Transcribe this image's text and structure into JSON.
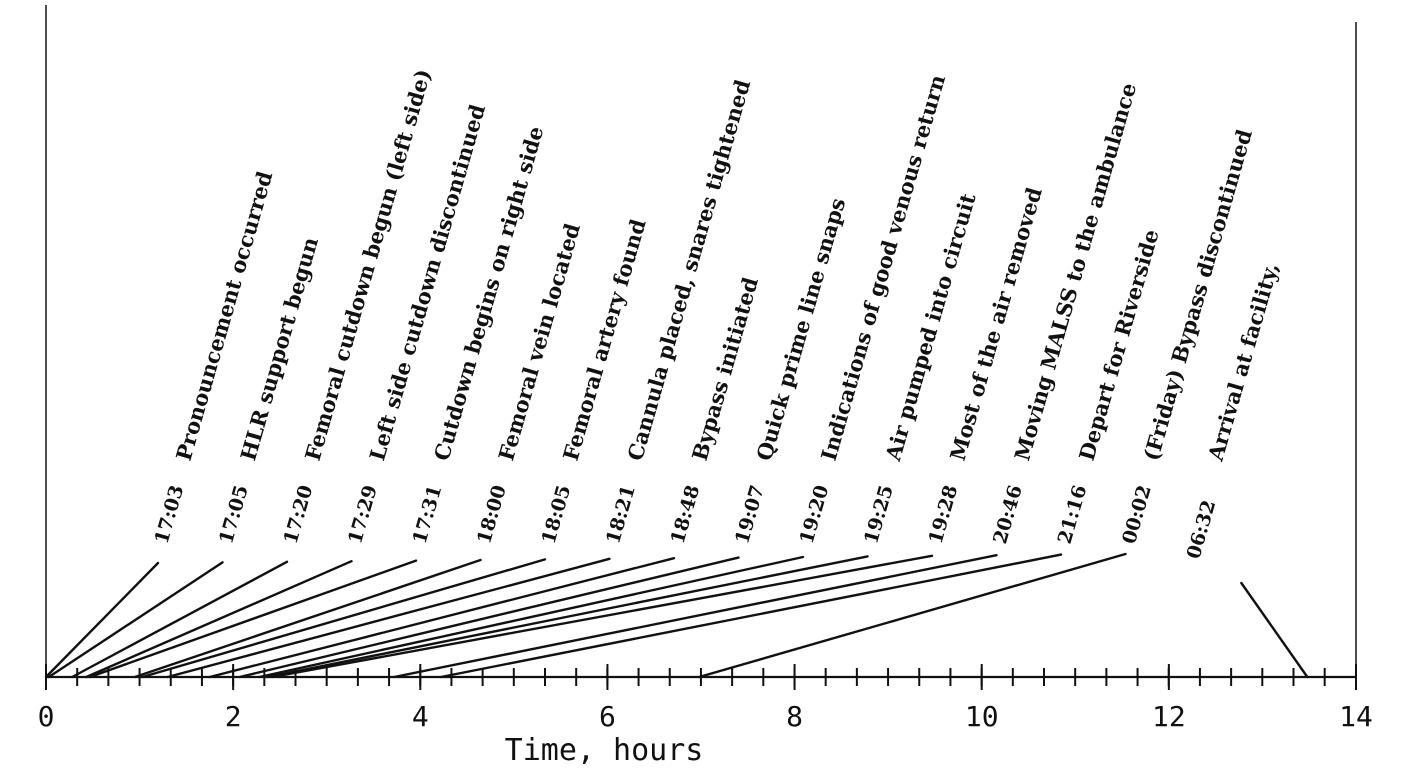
{
  "chart_data": {
    "type": "timeline",
    "xlabel": "Time, hours",
    "xlim": [
      0,
      14
    ],
    "xticks": [
      "0",
      "2",
      "4",
      "6",
      "8",
      "10",
      "12",
      "14"
    ],
    "minor_tick_step": 0.3333,
    "events": [
      {
        "time": "17:03",
        "hours": 0.0,
        "label": "Pronouncement occurred"
      },
      {
        "time": "17:05",
        "hours": 0.03,
        "label": "HLR support begun"
      },
      {
        "time": "17:20",
        "hours": 0.28,
        "label": "Femoral cutdown begun (left side)"
      },
      {
        "time": "17:29",
        "hours": 0.43,
        "label": "Left side cutdown discontinued"
      },
      {
        "time": "17:31",
        "hours": 0.47,
        "label": "Cutdown begins on right side"
      },
      {
        "time": "18:00",
        "hours": 0.95,
        "label": "Femoral vein located"
      },
      {
        "time": "18:05",
        "hours": 1.03,
        "label": "Femoral artery found"
      },
      {
        "time": "18:21",
        "hours": 1.3,
        "label": "Cannula placed, snares tightened"
      },
      {
        "time": "18:48",
        "hours": 1.75,
        "label": "Bypass initiated"
      },
      {
        "time": "19:07",
        "hours": 2.07,
        "label": "Quick prime line snaps"
      },
      {
        "time": "19:20",
        "hours": 2.28,
        "label": "Indications of good venous return"
      },
      {
        "time": "19:25",
        "hours": 2.37,
        "label": "Air pumped into circuit"
      },
      {
        "time": "19:28",
        "hours": 2.42,
        "label": "Most of the air removed"
      },
      {
        "time": "20:46",
        "hours": 3.72,
        "label": "Moving MALSS to the ambulance"
      },
      {
        "time": "21:16",
        "hours": 4.22,
        "label": "Depart for Riverside"
      },
      {
        "time": "00:02",
        "hours": 6.98,
        "label": "(Friday) Bypass discontinued"
      },
      {
        "time": "06:32",
        "hours": 13.48,
        "label": "Arrival at facility,"
      }
    ]
  }
}
